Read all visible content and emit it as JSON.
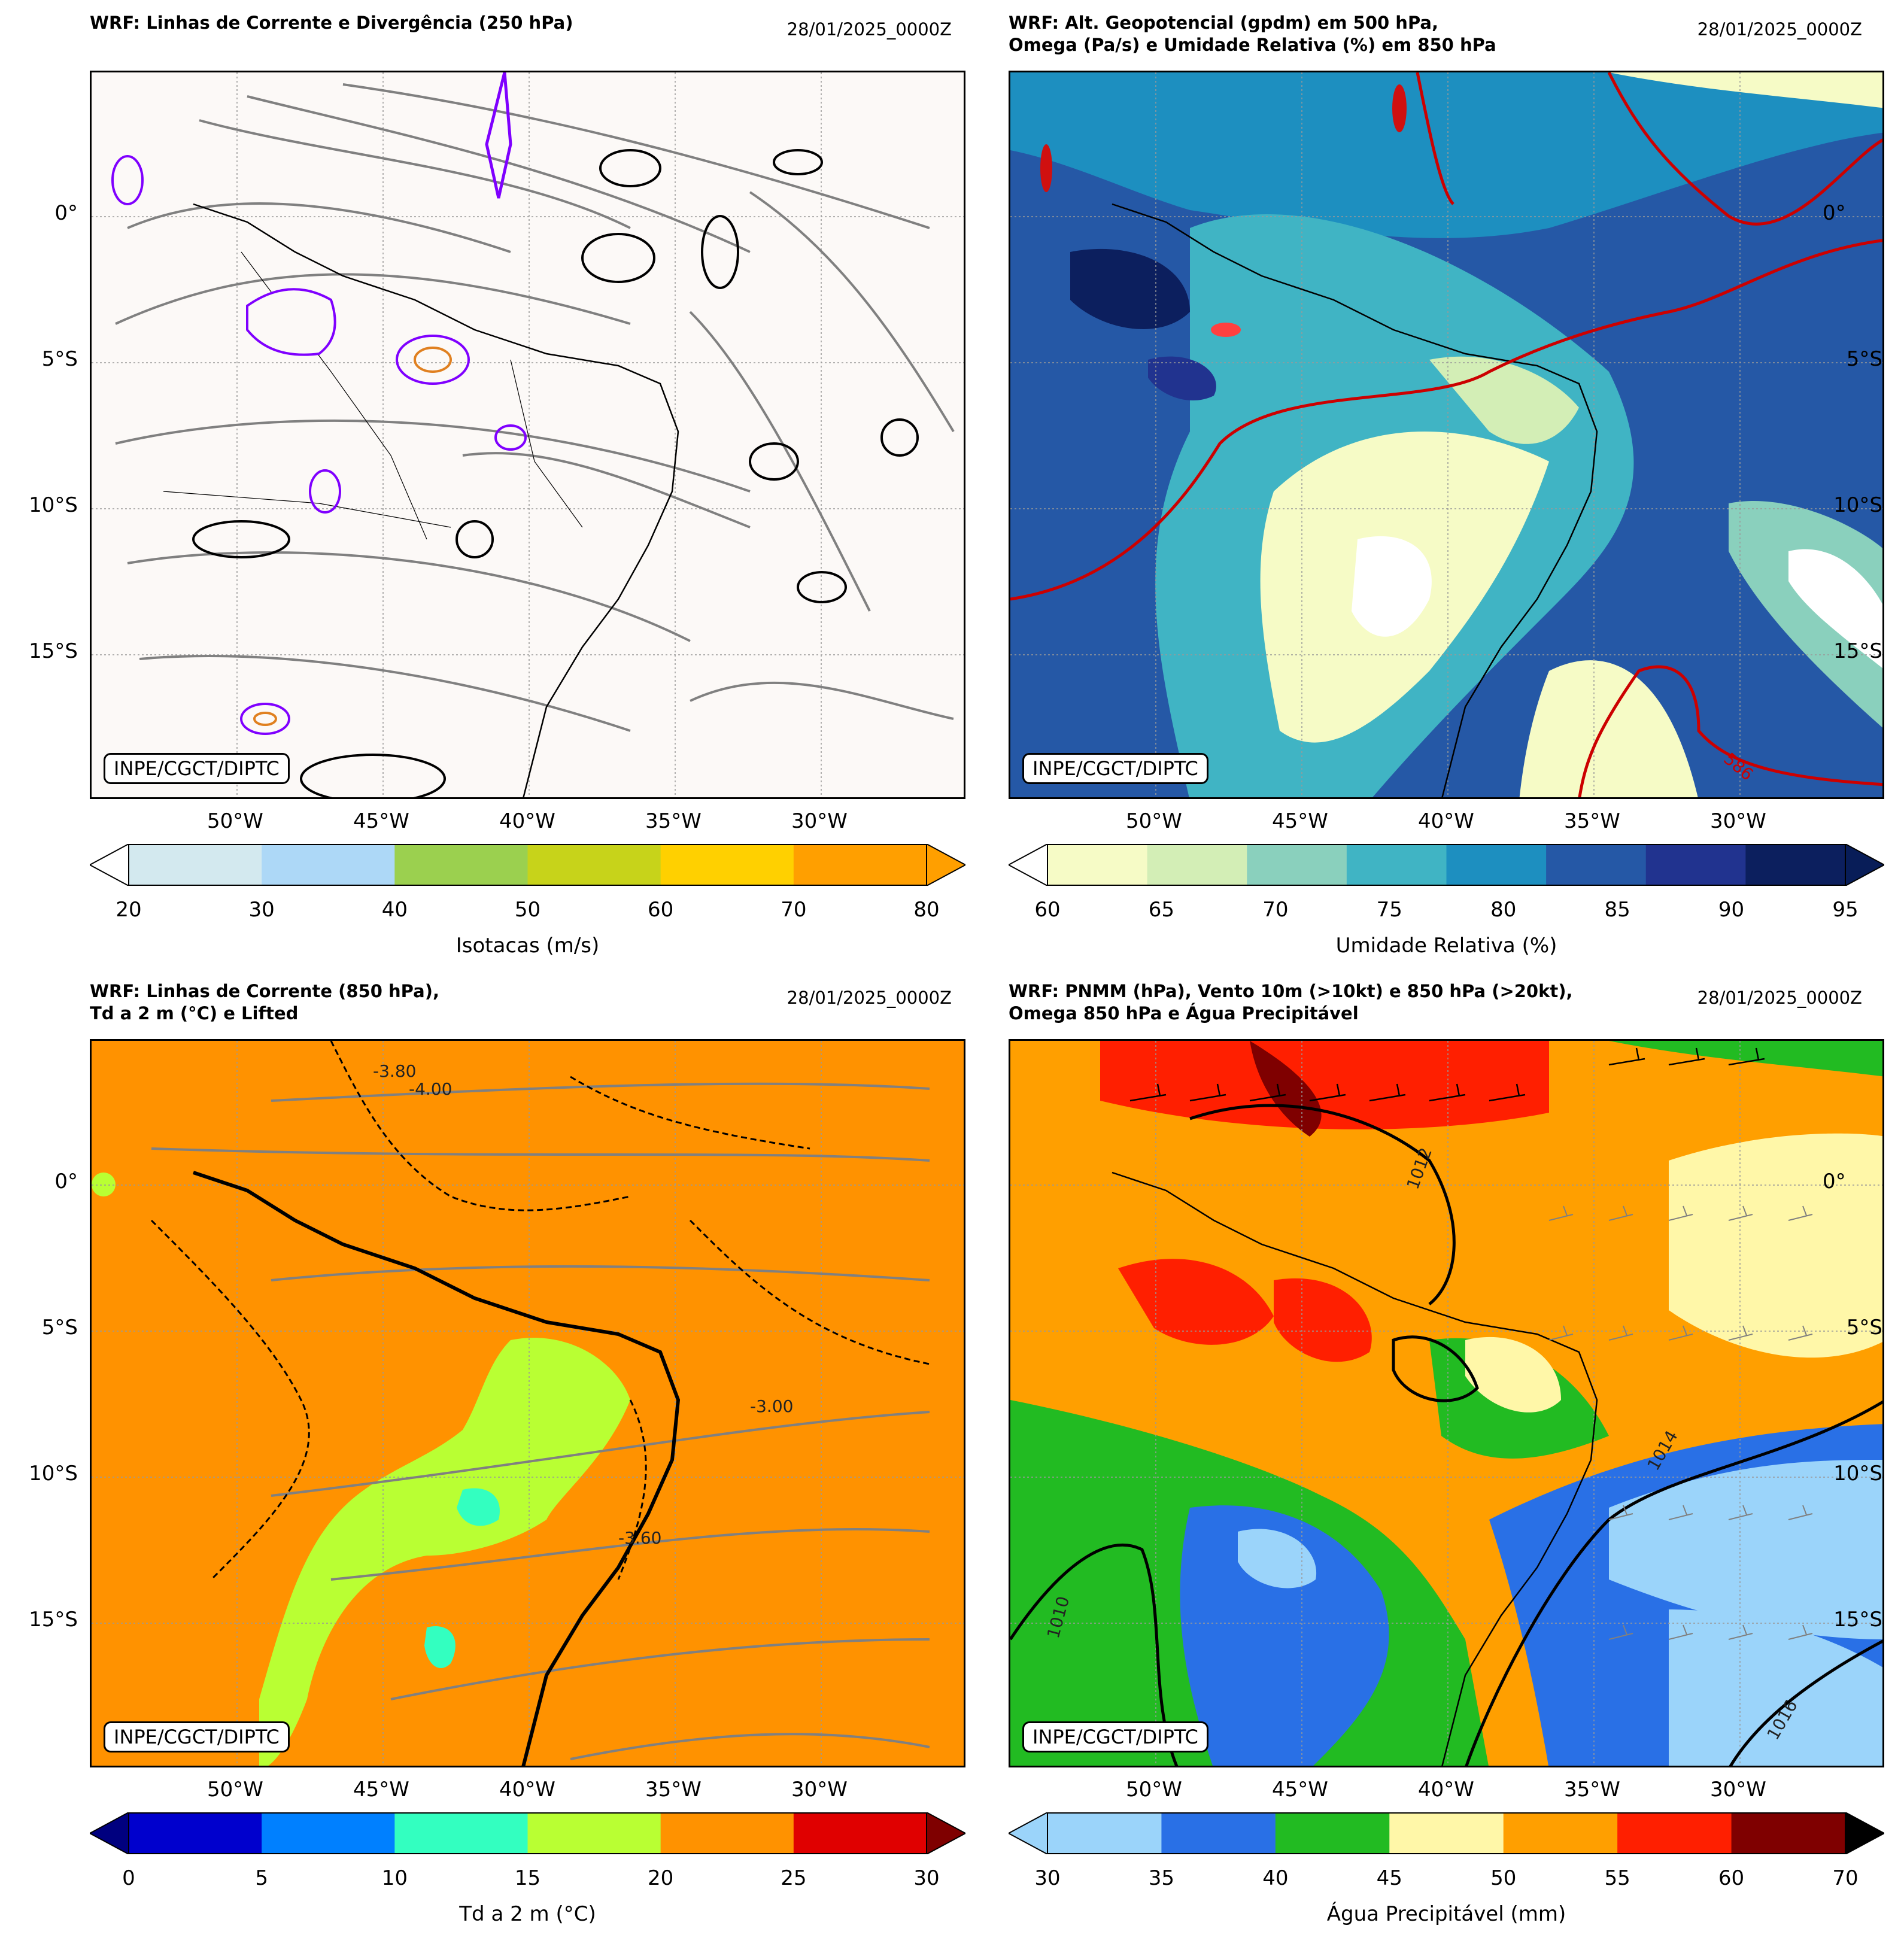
{
  "panels": [
    {
      "title": "WRF: Linhas de Corrente e Divergência (250 hPa)",
      "date": "28/01/2025_0000Z",
      "credit": "INPE/CGCT/DIPTC",
      "lat_labels": [
        "0°",
        "5°S",
        "10°S",
        "15°S"
      ],
      "lon_labels": [
        "50°W",
        "45°W",
        "40°W",
        "35°W",
        "30°W"
      ],
      "colorbar": {
        "label": "Isotacas (m/s)",
        "ticks": [
          "20",
          "30",
          "40",
          "50",
          "60",
          "70",
          "80"
        ],
        "colors": [
          "#d3e9ef",
          "#add8f7",
          "#9bd04f",
          "#c7d31a",
          "#ffd000",
          "#ff9f00"
        ],
        "under": "#ffffff",
        "over": "#ff9f00"
      }
    },
    {
      "title": "WRF: Alt. Geopotencial (gpdm) em 500 hPa,\nOmega (Pa/s) e Umidade Relativa (%) em 850 hPa",
      "date": "28/01/2025_0000Z",
      "credit": "INPE/CGCT/DIPTC",
      "lat_labels": [
        "0°",
        "5°S",
        "10°S",
        "15°S"
      ],
      "lon_labels": [
        "50°W",
        "45°W",
        "40°W",
        "35°W",
        "30°W"
      ],
      "contour_labels": [
        "586"
      ],
      "colorbar": {
        "label": "Umidade Relativa (%)",
        "ticks": [
          "60",
          "65",
          "70",
          "75",
          "80",
          "85",
          "90",
          "95"
        ],
        "colors": [
          "#f6fbc6",
          "#d3eeb6",
          "#8ad0bd",
          "#40b4c4",
          "#1d8fc0",
          "#2558a6",
          "#21338f",
          "#0c1f5e"
        ],
        "under": "#ffffff",
        "over": "#081d58"
      }
    },
    {
      "title": "WRF: Linhas de Corrente (850 hPa),\nTd a 2 m (°C) e Lifted",
      "date": "28/01/2025_0000Z",
      "credit": "INPE/CGCT/DIPTC",
      "lat_labels": [
        "0°",
        "5°S",
        "10°S",
        "15°S"
      ],
      "lon_labels": [
        "50°W",
        "45°W",
        "40°W",
        "35°W",
        "30°W"
      ],
      "contour_labels": [
        "-4.00",
        "-3.80",
        "-3.00",
        "-3.60"
      ],
      "colorbar": {
        "label": "Td a 2 m (°C)",
        "ticks": [
          "0",
          "5",
          "10",
          "15",
          "20",
          "25",
          "30"
        ],
        "colors": [
          "#0000cd",
          "#0080ff",
          "#33ffc0",
          "#b9ff33",
          "#ff9200",
          "#e00000"
        ],
        "under": "#00007f",
        "over": "#7f0000"
      }
    },
    {
      "title": "WRF: PNMM (hPa), Vento 10m (>10kt) e 850 hPa (>20kt),\nOmega 850 hPa e Água Precipitável",
      "date": "28/01/2025_0000Z",
      "credit": "INPE/CGCT/DIPTC",
      "lat_labels": [
        "0°",
        "5°S",
        "10°S",
        "15°S"
      ],
      "lon_labels": [
        "50°W",
        "45°W",
        "40°W",
        "35°W",
        "30°W"
      ],
      "contour_labels": [
        "1012",
        "1014",
        "1016",
        "1010"
      ],
      "colorbar": {
        "label": "Água Precipitável (mm)",
        "ticks": [
          "30",
          "35",
          "40",
          "45",
          "50",
          "55",
          "60",
          "70"
        ],
        "colors": [
          "#9bd4fa",
          "#2970e6",
          "#22bb22",
          "#fff7a8",
          "#ff9f00",
          "#ff1f00",
          "#7f0000"
        ],
        "under": "#9bd4fa",
        "over": "#000000"
      }
    }
  ]
}
